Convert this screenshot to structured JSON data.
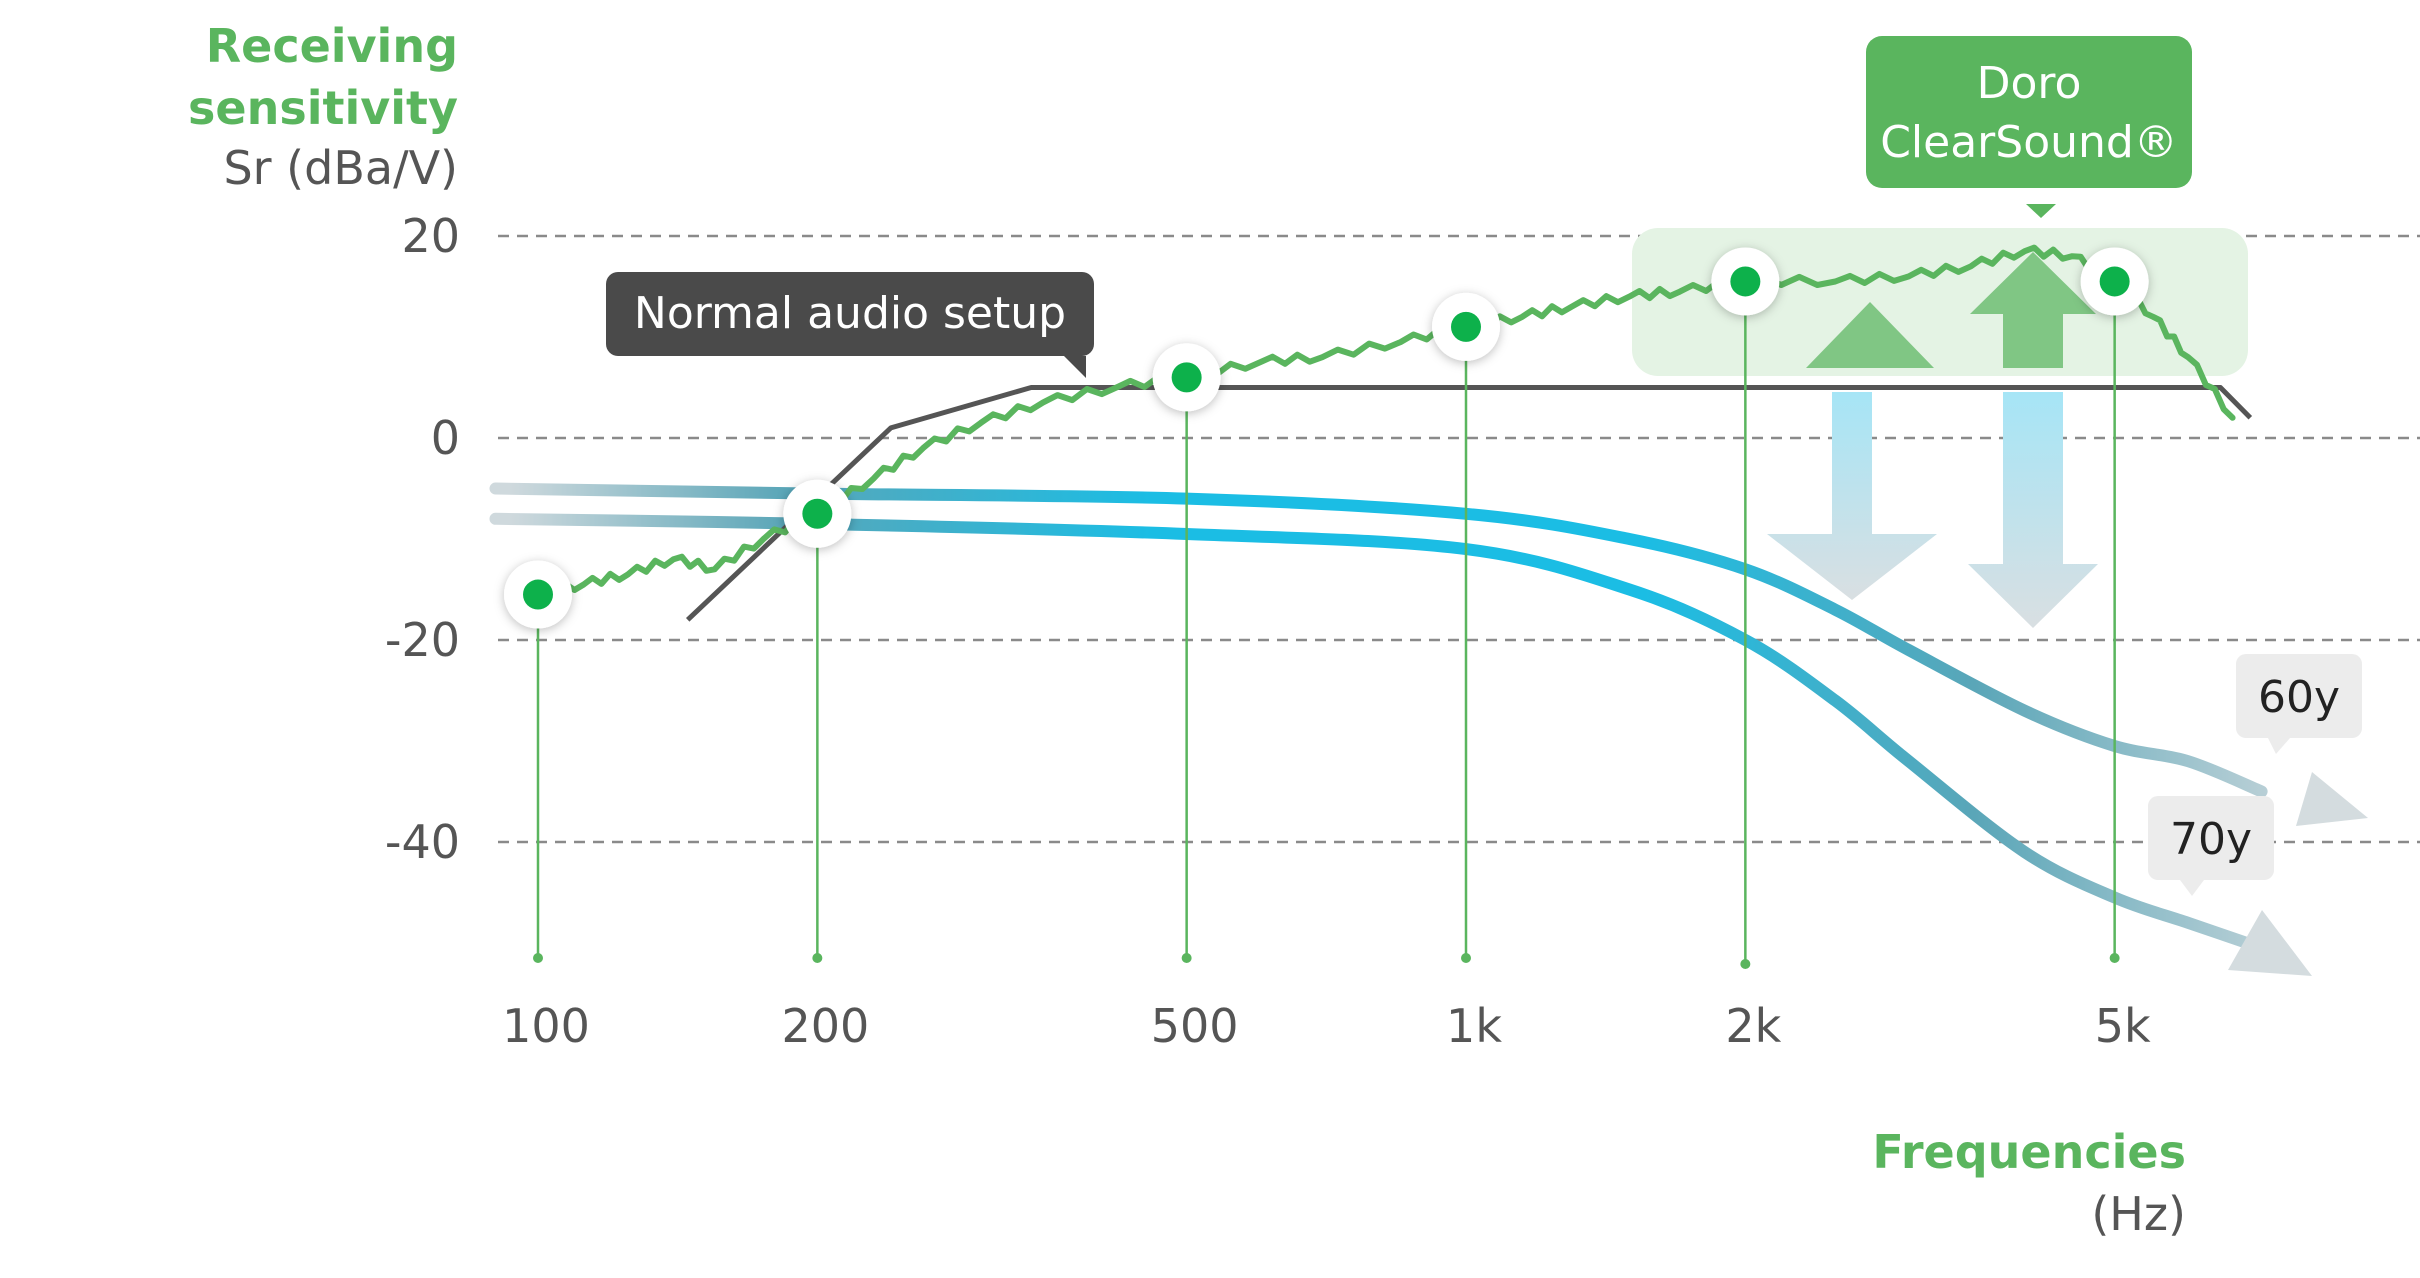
{
  "chart_data": {
    "type": "line",
    "y_axis": {
      "label_line1": "Receiving",
      "label_line2": "sensitivity",
      "unit": "Sr (dBa/V)",
      "ticks": [
        "20",
        "0",
        "-20",
        "-40"
      ],
      "tick_values": [
        20,
        0,
        -20,
        -40
      ],
      "range": [
        -52,
        22
      ]
    },
    "x_axis": {
      "label": "Frequencies",
      "unit": "(Hz)",
      "scale": "log",
      "ticks": [
        "100",
        "200",
        "500",
        "1k",
        "2k",
        "5k"
      ],
      "tick_values": [
        100,
        200,
        500,
        1000,
        2000,
        5000
      ]
    },
    "grid": "horizontal dashed at tick values",
    "series": [
      {
        "name": "Doro ClearSound®",
        "color": "#5ab55e",
        "points": [
          [
            100,
            -15.5
          ],
          [
            112,
            -14.5
          ],
          [
            125,
            -13.5
          ],
          [
            140,
            -12
          ],
          [
            155,
            -13
          ],
          [
            175,
            -10
          ],
          [
            200,
            -7.5
          ],
          [
            230,
            -4
          ],
          [
            260,
            -1
          ],
          [
            300,
            1.5
          ],
          [
            350,
            3.5
          ],
          [
            420,
            5
          ],
          [
            500,
            6
          ],
          [
            600,
            7.5
          ],
          [
            700,
            8
          ],
          [
            850,
            9.5
          ],
          [
            1000,
            11
          ],
          [
            1150,
            12
          ],
          [
            1300,
            13
          ],
          [
            1500,
            14
          ],
          [
            1700,
            14.5
          ],
          [
            2000,
            15.5
          ],
          [
            2500,
            15.5
          ],
          [
            3000,
            16
          ],
          [
            3500,
            17
          ],
          [
            4000,
            18.5
          ],
          [
            4500,
            18
          ],
          [
            5000,
            15.5
          ],
          [
            5500,
            12
          ],
          [
            6000,
            8
          ],
          [
            6700,
            2
          ]
        ],
        "markers": [
          [
            100,
            -15.5
          ],
          [
            200,
            -7.5
          ],
          [
            500,
            6
          ],
          [
            1000,
            11
          ],
          [
            2000,
            15.5
          ],
          [
            5000,
            15.5
          ]
        ]
      },
      {
        "name": "Normal audio setup",
        "color": "#555555",
        "points": [
          [
            145,
            -18
          ],
          [
            240,
            1
          ],
          [
            340,
            5
          ],
          [
            600,
            5
          ],
          [
            1000,
            5
          ],
          [
            2000,
            5
          ],
          [
            6500,
            5
          ],
          [
            7000,
            2
          ]
        ]
      },
      {
        "name": "60y",
        "color": "#1bbde4",
        "points": [
          [
            90,
            -5
          ],
          [
            200,
            -5.5
          ],
          [
            500,
            -6
          ],
          [
            1000,
            -7.5
          ],
          [
            1500,
            -10
          ],
          [
            2000,
            -13
          ],
          [
            2500,
            -17
          ],
          [
            3000,
            -21
          ],
          [
            4000,
            -27
          ],
          [
            5000,
            -30.5
          ],
          [
            6000,
            -32
          ],
          [
            7200,
            -35
          ]
        ]
      },
      {
        "name": "70y",
        "color": "#1bbde4",
        "points": [
          [
            90,
            -8
          ],
          [
            200,
            -8.5
          ],
          [
            500,
            -9.5
          ],
          [
            1000,
            -11
          ],
          [
            1500,
            -15
          ],
          [
            2000,
            -20
          ],
          [
            2500,
            -26
          ],
          [
            3000,
            -32
          ],
          [
            4000,
            -41
          ],
          [
            5000,
            -45.5
          ],
          [
            6000,
            -48
          ],
          [
            7200,
            -50.5
          ]
        ]
      }
    ]
  },
  "labels": {
    "normal": "Normal audio setup",
    "doro_line1": "Doro",
    "doro_line2": "ClearSound®",
    "age60": "60y",
    "age70": "70y"
  },
  "colors": {
    "green": "#5ab55e",
    "marker_green": "#0db14b",
    "dark_line": "#555555",
    "callout_dark": "#4a4a4a",
    "cyan": "#1bbde4",
    "highlight": "#e4f3e4",
    "arrow_green": "#80c684",
    "age_box": "#ececec"
  }
}
